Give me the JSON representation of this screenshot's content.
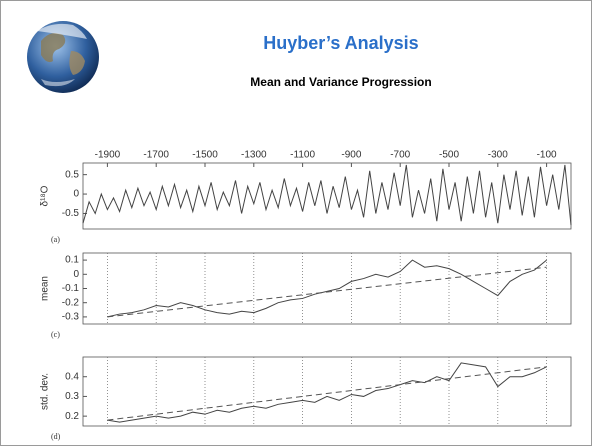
{
  "header": {
    "title": "Huyber’s Analysis",
    "subtitle": "Mean and Variance Progression"
  },
  "chart_data": [
    {
      "type": "line",
      "panel_label": "(a)",
      "y_label": "δ¹⁸O",
      "xlim": [
        -2000,
        0
      ],
      "xticks": [
        -1900,
        -1700,
        -1500,
        -1300,
        -1100,
        -900,
        -700,
        -500,
        -300,
        -100
      ],
      "xtick_labels": true,
      "ylim": [
        -0.9,
        0.8
      ],
      "yticks": [
        0.5,
        0,
        -0.5
      ],
      "grid": false,
      "x": [
        -2000,
        -1975,
        -1950,
        -1925,
        -1900,
        -1875,
        -1850,
        -1825,
        -1800,
        -1775,
        -1750,
        -1725,
        -1700,
        -1675,
        -1650,
        -1625,
        -1600,
        -1575,
        -1550,
        -1525,
        -1500,
        -1475,
        -1450,
        -1425,
        -1400,
        -1375,
        -1350,
        -1325,
        -1300,
        -1275,
        -1250,
        -1225,
        -1200,
        -1175,
        -1150,
        -1125,
        -1100,
        -1075,
        -1050,
        -1025,
        -1000,
        -975,
        -950,
        -925,
        -900,
        -875,
        -850,
        -825,
        -800,
        -775,
        -750,
        -725,
        -700,
        -675,
        -650,
        -625,
        -600,
        -575,
        -550,
        -525,
        -500,
        -475,
        -450,
        -425,
        -400,
        -375,
        -350,
        -325,
        -300,
        -275,
        -250,
        -225,
        -200,
        -175,
        -150,
        -125,
        -100,
        -75,
        -50,
        -25,
        0
      ],
      "series": [
        {
          "color": "#444444",
          "values": [
            -0.75,
            -0.2,
            -0.5,
            0.0,
            -0.4,
            -0.1,
            -0.45,
            0.1,
            -0.35,
            0.15,
            -0.3,
            0.05,
            -0.4,
            0.2,
            -0.3,
            0.25,
            -0.35,
            0.1,
            -0.45,
            0.2,
            -0.3,
            0.3,
            -0.4,
            0.05,
            -0.3,
            0.35,
            -0.5,
            0.2,
            -0.25,
            0.3,
            -0.4,
            0.1,
            -0.35,
            0.4,
            -0.3,
            0.15,
            -0.45,
            0.3,
            -0.3,
            0.35,
            -0.5,
            0.2,
            -0.35,
            0.45,
            -0.4,
            0.1,
            -0.6,
            0.6,
            -0.5,
            0.3,
            -0.4,
            0.55,
            -0.3,
            0.75,
            -0.6,
            0.1,
            -0.5,
            0.4,
            -0.7,
            0.65,
            -0.4,
            0.3,
            -0.7,
            0.45,
            -0.5,
            0.6,
            -0.6,
            0.3,
            -0.75,
            0.5,
            -0.4,
            0.6,
            -0.55,
            0.45,
            -0.6,
            0.7,
            -0.3,
            0.5,
            -0.4,
            0.75,
            -0.8
          ]
        }
      ]
    },
    {
      "type": "line",
      "panel_label": "(c)",
      "y_label": "mean",
      "xlim": [
        -2000,
        0
      ],
      "xticks": [
        -1900,
        -1700,
        -1500,
        -1300,
        -1100,
        -900,
        -700,
        -500,
        -300,
        -100
      ],
      "xtick_labels": false,
      "ylim": [
        -0.35,
        0.15
      ],
      "yticks": [
        0.1,
        0,
        -0.1,
        -0.2,
        -0.3
      ],
      "grid": true,
      "x": [
        -1900,
        -1850,
        -1800,
        -1750,
        -1700,
        -1650,
        -1600,
        -1550,
        -1500,
        -1450,
        -1400,
        -1350,
        -1300,
        -1250,
        -1200,
        -1150,
        -1100,
        -1050,
        -1000,
        -950,
        -900,
        -850,
        -800,
        -750,
        -700,
        -650,
        -600,
        -550,
        -500,
        -450,
        -400,
        -350,
        -300,
        -250,
        -200,
        -150,
        -100
      ],
      "series": [
        {
          "color": "#444444",
          "values": [
            -0.3,
            -0.28,
            -0.27,
            -0.25,
            -0.22,
            -0.23,
            -0.2,
            -0.22,
            -0.25,
            -0.27,
            -0.28,
            -0.26,
            -0.27,
            -0.24,
            -0.2,
            -0.18,
            -0.17,
            -0.14,
            -0.12,
            -0.1,
            -0.05,
            -0.03,
            0.0,
            -0.02,
            0.02,
            0.1,
            0.05,
            0.06,
            0.04,
            0.0,
            -0.05,
            -0.1,
            -0.15,
            -0.05,
            0.0,
            0.03,
            0.1
          ]
        }
      ],
      "trend": {
        "x": [
          -1900,
          -100
        ],
        "values": [
          -0.3,
          0.05
        ]
      }
    },
    {
      "type": "line",
      "panel_label": "(d)",
      "y_label": "std. dev.",
      "xlim": [
        -2000,
        0
      ],
      "xticks": [
        -1900,
        -1700,
        -1500,
        -1300,
        -1100,
        -900,
        -700,
        -500,
        -300,
        -100
      ],
      "xtick_labels": false,
      "ylim": [
        0.15,
        0.5
      ],
      "yticks": [
        0.4,
        0.3,
        0.2
      ],
      "grid": true,
      "x": [
        -1900,
        -1850,
        -1800,
        -1750,
        -1700,
        -1650,
        -1600,
        -1550,
        -1500,
        -1450,
        -1400,
        -1350,
        -1300,
        -1250,
        -1200,
        -1150,
        -1100,
        -1050,
        -1000,
        -950,
        -900,
        -850,
        -800,
        -750,
        -700,
        -650,
        -600,
        -550,
        -500,
        -450,
        -400,
        -350,
        -300,
        -250,
        -200,
        -150,
        -100
      ],
      "series": [
        {
          "color": "#444444",
          "values": [
            0.18,
            0.17,
            0.18,
            0.19,
            0.2,
            0.19,
            0.2,
            0.22,
            0.21,
            0.23,
            0.22,
            0.24,
            0.25,
            0.24,
            0.26,
            0.27,
            0.28,
            0.27,
            0.3,
            0.28,
            0.31,
            0.3,
            0.33,
            0.34,
            0.36,
            0.38,
            0.37,
            0.4,
            0.38,
            0.47,
            0.46,
            0.45,
            0.35,
            0.4,
            0.4,
            0.42,
            0.45
          ]
        }
      ],
      "trend": {
        "x": [
          -1900,
          -100
        ],
        "values": [
          0.18,
          0.45
        ]
      }
    }
  ]
}
